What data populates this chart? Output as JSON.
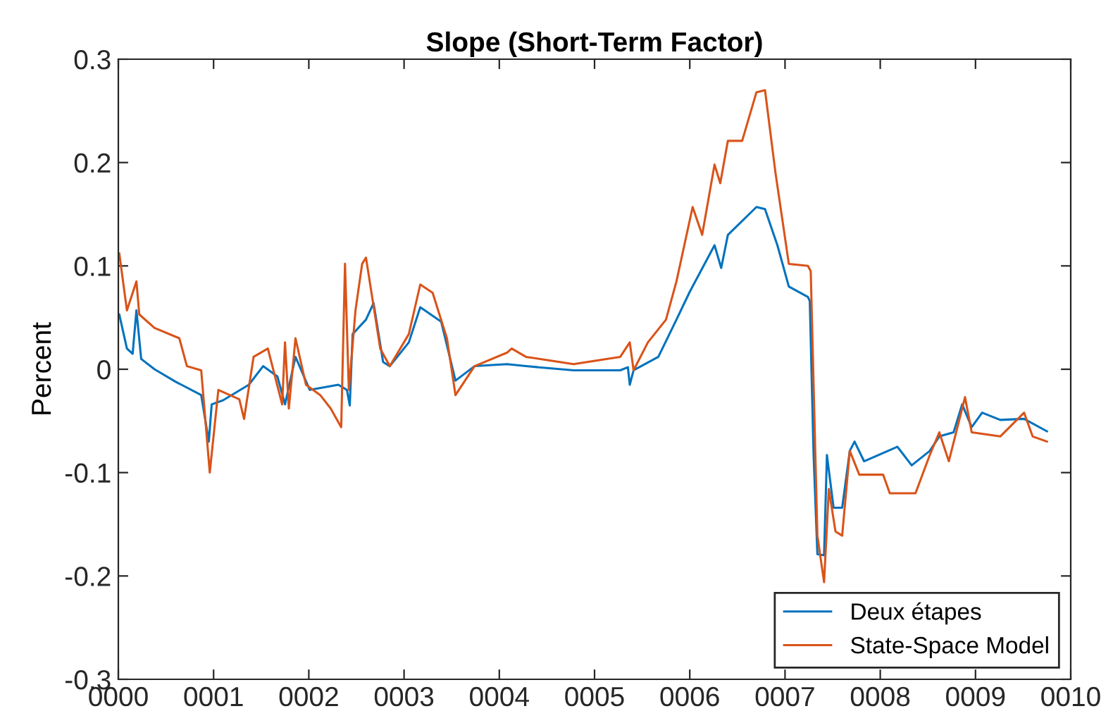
{
  "chart_data": {
    "type": "line",
    "title": "Slope (Short-Term Factor)",
    "ylabel": "Percent",
    "xlim": [
      0,
      10
    ],
    "xticks": [
      {
        "value": 0,
        "label": "0000"
      },
      {
        "value": 1,
        "label": "0001"
      },
      {
        "value": 2,
        "label": "0002"
      },
      {
        "value": 3,
        "label": "0003"
      },
      {
        "value": 4,
        "label": "0004"
      },
      {
        "value": 5,
        "label": "0005"
      },
      {
        "value": 6,
        "label": "0006"
      },
      {
        "value": 7,
        "label": "0007"
      },
      {
        "value": 8,
        "label": "0008"
      },
      {
        "value": 9,
        "label": "0009"
      },
      {
        "value": 10,
        "label": "0010"
      }
    ],
    "ylim": [
      -0.3,
      0.3
    ],
    "yticks": [
      -0.3,
      -0.2,
      -0.1,
      0,
      0.1,
      0.2,
      0.3
    ],
    "grid": false,
    "legend": "bottom right",
    "series": [
      {
        "name": "Deux étapes",
        "color": "#0072bd",
        "x": [
          0.01,
          0.09,
          0.15,
          0.19,
          0.24,
          0.38,
          0.6,
          0.87,
          0.95,
          0.98,
          1.1,
          1.37,
          1.52,
          1.67,
          1.75,
          1.86,
          2.01,
          2.31,
          2.4,
          2.43,
          2.46,
          2.6,
          2.68,
          2.78,
          2.85,
          3.05,
          3.17,
          3.39,
          3.54,
          3.74,
          4.08,
          4.28,
          4.78,
          5.27,
          5.35,
          5.37,
          5.41,
          5.67,
          5.86,
          6.0,
          6.26,
          6.33,
          6.4,
          6.7,
          6.79,
          6.92,
          7.04,
          7.24,
          7.26,
          7.3,
          7.34,
          7.41,
          7.44,
          7.51,
          7.6,
          7.68,
          7.73,
          7.83,
          8.18,
          8.33,
          8.52,
          8.62,
          8.77,
          8.86,
          8.96,
          9.07,
          9.26,
          9.51,
          9.75
        ],
        "values": [
          0.053,
          0.02,
          0.015,
          0.057,
          0.01,
          0.0,
          -0.012,
          -0.025,
          -0.07,
          -0.034,
          -0.03,
          -0.015,
          0.003,
          -0.007,
          -0.034,
          0.012,
          -0.02,
          -0.015,
          -0.02,
          -0.035,
          0.034,
          0.048,
          0.064,
          0.007,
          0.003,
          0.026,
          0.06,
          0.046,
          -0.011,
          0.003,
          0.005,
          0.003,
          -0.001,
          -0.001,
          0.002,
          -0.015,
          -0.001,
          0.012,
          0.048,
          0.075,
          0.12,
          0.098,
          0.13,
          0.157,
          0.155,
          0.12,
          0.08,
          0.07,
          0.066,
          -0.083,
          -0.179,
          -0.18,
          -0.083,
          -0.134,
          -0.134,
          -0.079,
          -0.07,
          -0.089,
          -0.075,
          -0.093,
          -0.079,
          -0.065,
          -0.061,
          -0.034,
          -0.056,
          -0.042,
          -0.049,
          -0.048,
          -0.06
        ]
      },
      {
        "name": "State-Space Model",
        "color": "#d95319",
        "x": [
          0.01,
          0.09,
          0.19,
          0.22,
          0.38,
          0.64,
          0.72,
          0.87,
          0.96,
          1.05,
          1.27,
          1.32,
          1.42,
          1.57,
          1.72,
          1.75,
          1.79,
          1.86,
          1.97,
          2.12,
          2.23,
          2.34,
          2.38,
          2.42,
          2.49,
          2.56,
          2.6,
          2.75,
          2.85,
          3.05,
          3.17,
          3.3,
          3.45,
          3.54,
          3.74,
          4.08,
          4.13,
          4.28,
          4.78,
          5.27,
          5.37,
          5.41,
          5.56,
          5.75,
          5.86,
          6.03,
          6.13,
          6.26,
          6.32,
          6.4,
          6.55,
          6.7,
          6.79,
          6.9,
          7.04,
          7.24,
          7.27,
          7.34,
          7.41,
          7.46,
          7.53,
          7.6,
          7.68,
          7.78,
          8.03,
          8.1,
          8.22,
          8.37,
          8.52,
          8.62,
          8.72,
          8.89,
          8.96,
          9.26,
          9.51,
          9.6,
          9.75
        ],
        "values": [
          0.112,
          0.057,
          0.085,
          0.053,
          0.04,
          0.03,
          0.003,
          -0.001,
          -0.1,
          -0.02,
          -0.029,
          -0.048,
          0.012,
          0.02,
          -0.034,
          0.026,
          -0.038,
          0.03,
          -0.015,
          -0.025,
          -0.038,
          -0.056,
          0.102,
          -0.02,
          0.057,
          0.102,
          0.108,
          0.02,
          0.003,
          0.034,
          0.082,
          0.074,
          0.03,
          -0.025,
          0.003,
          0.016,
          0.02,
          0.012,
          0.005,
          0.012,
          0.026,
          -0.001,
          0.026,
          0.048,
          0.085,
          0.157,
          0.13,
          0.198,
          0.18,
          0.221,
          0.221,
          0.268,
          0.27,
          0.19,
          0.102,
          0.1,
          0.095,
          -0.161,
          -0.206,
          -0.116,
          -0.157,
          -0.161,
          -0.079,
          -0.102,
          -0.102,
          -0.12,
          -0.12,
          -0.12,
          -0.083,
          -0.061,
          -0.089,
          -0.027,
          -0.061,
          -0.065,
          -0.042,
          -0.065,
          -0.07
        ]
      }
    ]
  }
}
